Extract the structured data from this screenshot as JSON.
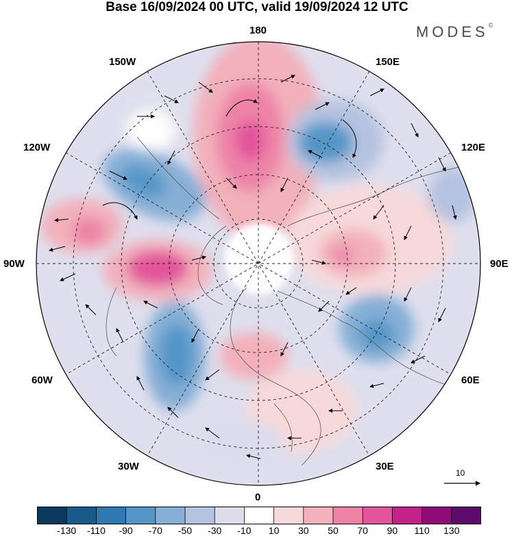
{
  "header": {
    "title": "Base 16/09/2024 00 UTC, valid 19/09/2024 12 UTC",
    "brand": "MODES",
    "brand_mark": "©"
  },
  "map": {
    "projection": "north-polar-stereographic",
    "longitude_labels": [
      "180",
      "150E",
      "120E",
      "90E",
      "60E",
      "30E",
      "0",
      "30W",
      "60W",
      "90W",
      "120W",
      "150W"
    ],
    "wind_reference_vector": "10"
  },
  "colorbar": {
    "ticks": [
      "-130",
      "-110",
      "-90",
      "-70",
      "-50",
      "-30",
      "-10",
      "10",
      "30",
      "50",
      "70",
      "90",
      "110",
      "130"
    ],
    "colors": [
      "#0b3a5e",
      "#1a5a89",
      "#2f79b2",
      "#5596c8",
      "#86afd6",
      "#b5c3e0",
      "#dcdcec",
      "#ffffff",
      "#f7d9d9",
      "#f2b1bb",
      "#ee83a7",
      "#e2559b",
      "#c22287",
      "#8f0c79",
      "#5e0a6b"
    ]
  }
}
